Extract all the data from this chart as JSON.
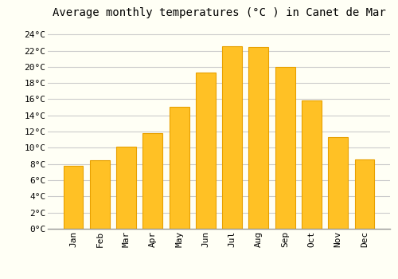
{
  "title": "Average monthly temperatures (°C ) in Canet de Mar",
  "months": [
    "Jan",
    "Feb",
    "Mar",
    "Apr",
    "May",
    "Jun",
    "Jul",
    "Aug",
    "Sep",
    "Oct",
    "Nov",
    "Dec"
  ],
  "values": [
    7.8,
    8.5,
    10.1,
    11.8,
    15.1,
    19.3,
    22.5,
    22.4,
    20.0,
    15.9,
    11.3,
    8.6
  ],
  "bar_color": "#FFC125",
  "bar_edge_color": "#E8A000",
  "background_color": "#FFFFF5",
  "grid_color": "#CCCCCC",
  "yticks": [
    0,
    2,
    4,
    6,
    8,
    10,
    12,
    14,
    16,
    18,
    20,
    22,
    24
  ],
  "ylim": [
    0,
    25.5
  ],
  "title_fontsize": 10,
  "tick_fontsize": 8,
  "font_family": "monospace",
  "bar_width": 0.75
}
